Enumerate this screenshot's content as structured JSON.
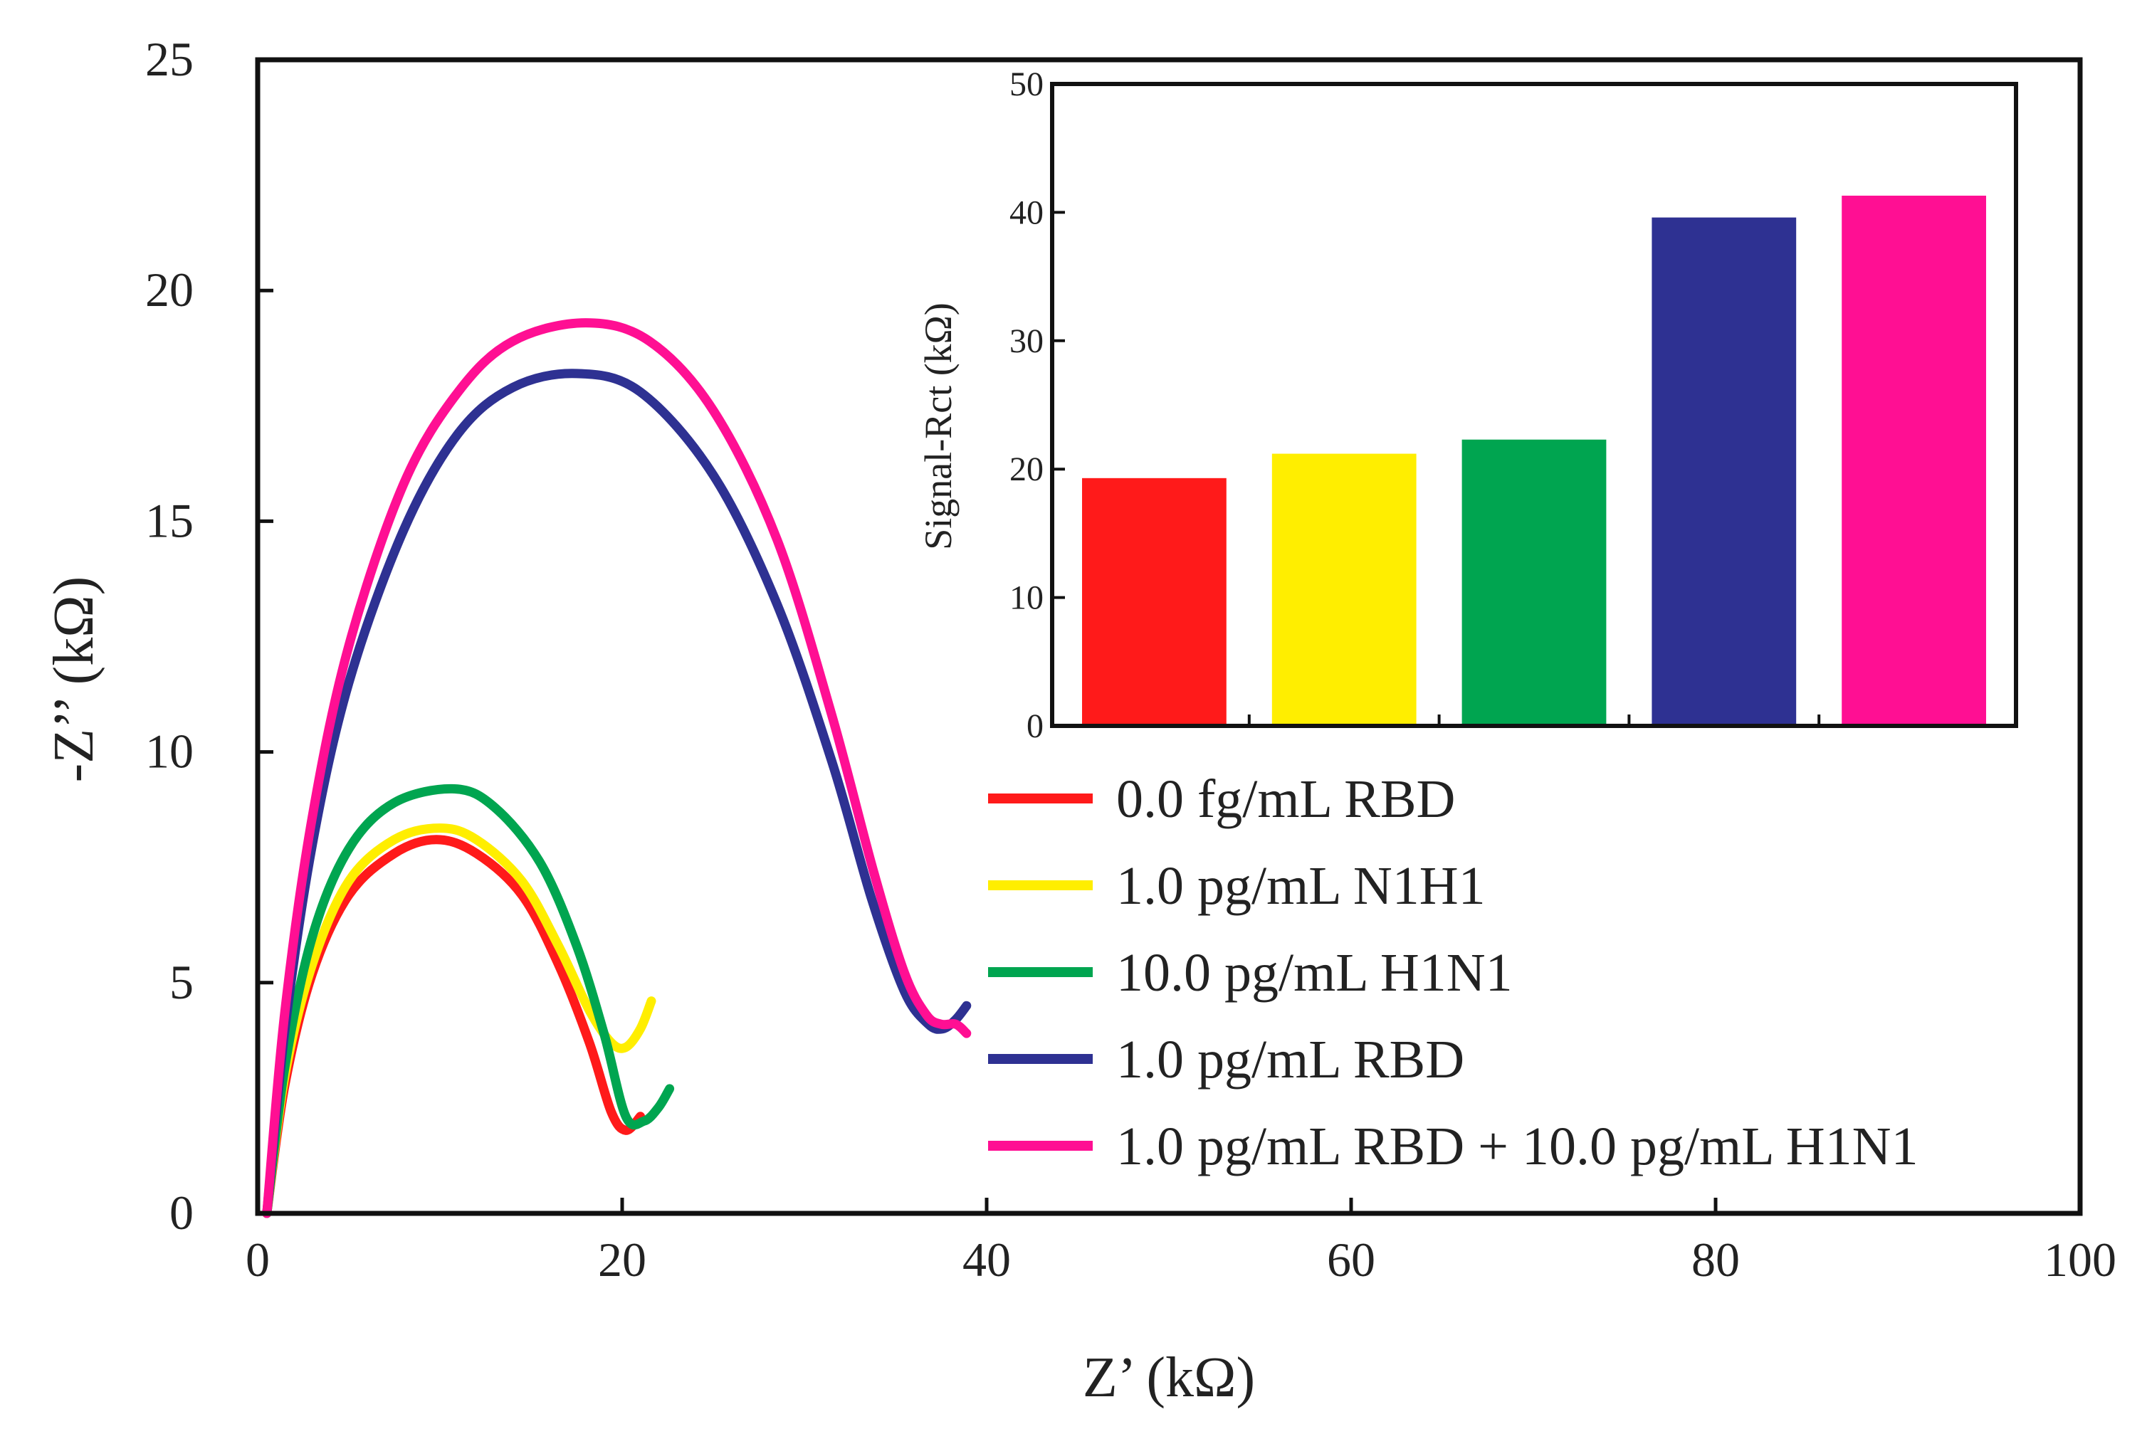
{
  "chart_data": [
    {
      "type": "line",
      "xlabel": "Z’ (kΩ)",
      "ylabel": "-Z’’ (kΩ)",
      "xlim": [
        0,
        100
      ],
      "ylim": [
        0,
        25
      ],
      "xticks": [
        0,
        20,
        40,
        60,
        80,
        100
      ],
      "yticks": [
        0,
        5,
        10,
        15,
        20,
        25
      ],
      "grid": false,
      "legend_position": "right-center",
      "series": [
        {
          "name": "0.0 fg/mL RBD",
          "color": "#ff1a1a",
          "x": [
            0.5,
            1.5,
            3.0,
            5.0,
            7.5,
            9.8,
            12.0,
            14.5,
            16.5,
            18.2,
            19.4,
            20.2,
            21.0
          ],
          "y": [
            0.0,
            2.8,
            5.2,
            6.9,
            7.8,
            8.1,
            7.8,
            6.9,
            5.4,
            3.7,
            2.2,
            1.8,
            2.1
          ]
        },
        {
          "name": "1.0 pg/mL N1H1",
          "color": "#ffee00",
          "x": [
            0.5,
            1.5,
            3.0,
            5.0,
            7.5,
            10.0,
            12.0,
            14.5,
            16.5,
            18.2,
            19.4,
            20.2,
            21.0,
            21.6
          ],
          "y": [
            0.0,
            3.0,
            5.4,
            7.2,
            8.1,
            8.35,
            8.1,
            7.2,
            5.8,
            4.4,
            3.7,
            3.6,
            4.0,
            4.6
          ]
        },
        {
          "name": "10.0 pg/mL H1N1",
          "color": "#00a550",
          "x": [
            0.5,
            1.5,
            3.0,
            5.0,
            7.5,
            10.8,
            13.0,
            15.5,
            17.5,
            19.0,
            20.2,
            21.2,
            22.0,
            22.6
          ],
          "y": [
            0.0,
            3.2,
            6.0,
            7.9,
            8.9,
            9.2,
            8.8,
            7.6,
            5.8,
            3.9,
            2.1,
            2.0,
            2.3,
            2.7
          ]
        },
        {
          "name": "1.0 pg/mL RBD",
          "color": "#2e3192",
          "x": [
            0.5,
            1.5,
            3.0,
            5.0,
            8.0,
            11.0,
            14.0,
            17.5,
            21.0,
            25.0,
            28.5,
            31.5,
            33.7,
            35.5,
            36.8,
            37.6,
            38.3,
            38.9
          ],
          "y": [
            0.0,
            4.0,
            8.0,
            11.5,
            14.8,
            16.9,
            17.9,
            18.2,
            17.8,
            16.0,
            13.2,
            9.8,
            6.8,
            4.8,
            4.1,
            4.0,
            4.2,
            4.5
          ]
        },
        {
          "name": "1.0 pg/mL RBD + 10.0 pg/mL H1N1",
          "color": "#ff0f93",
          "x": [
            0.5,
            1.5,
            3.0,
            5.0,
            8.0,
            11.0,
            14.0,
            18.0,
            21.5,
            25.0,
            28.5,
            31.5,
            33.8,
            35.5,
            36.7,
            37.5,
            38.3,
            38.9
          ],
          "y": [
            0.0,
            4.4,
            8.6,
            12.3,
            15.8,
            17.8,
            18.9,
            19.3,
            18.9,
            17.4,
            14.6,
            10.8,
            7.4,
            5.2,
            4.3,
            4.1,
            4.1,
            3.9
          ]
        }
      ]
    },
    {
      "type": "bar",
      "ylabel": "Signal-Rct (kΩ)",
      "xlabel": "",
      "ylim": [
        0,
        50
      ],
      "yticks": [
        0,
        10,
        20,
        30,
        40,
        50
      ],
      "categories": [
        "0.0 fg/mL RBD",
        "1.0 pg/mL N1H1",
        "10.0 pg/mL H1N1",
        "1.0 pg/mL RBD",
        "1.0 pg/mL RBD + 10.0 pg/mL H1N1"
      ],
      "values": [
        19.3,
        21.2,
        22.3,
        39.6,
        41.3
      ],
      "colors": [
        "#ff1a1a",
        "#ffee00",
        "#00a550",
        "#2e3192",
        "#ff0f93"
      ],
      "position": "inset top-right"
    }
  ]
}
